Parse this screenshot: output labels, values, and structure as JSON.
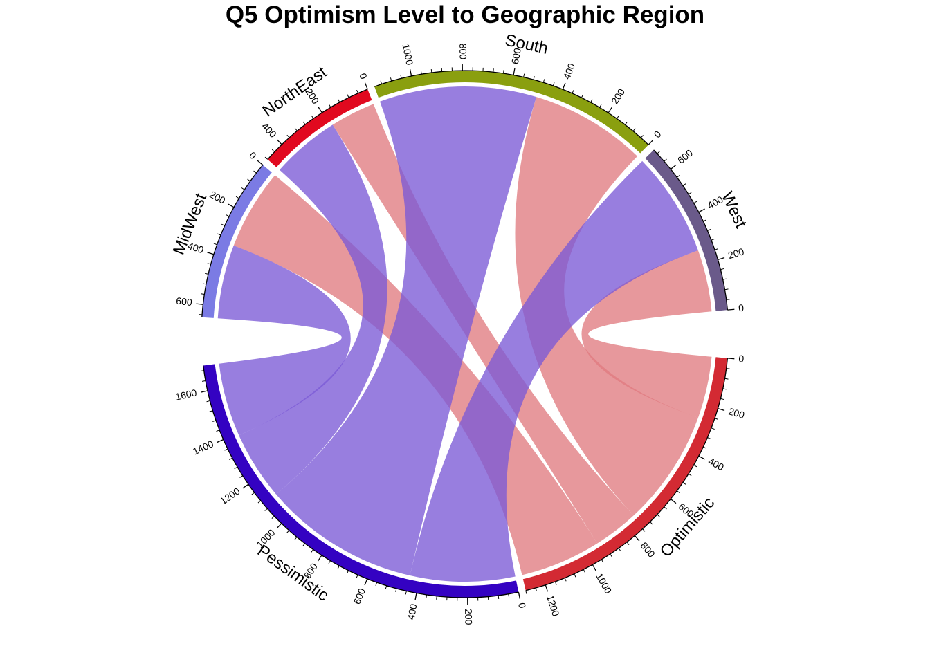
{
  "chart_data": {
    "type": "chord",
    "title": "Q5 Optimism Level to Geographic Region",
    "sectors": [
      {
        "name": "Optimistic",
        "total": 1280,
        "color": "#D32A33",
        "tick_step": 200,
        "minor_step": 40
      },
      {
        "name": "Pessimistic",
        "total": 1700,
        "color": "#3402C2",
        "tick_step": 200,
        "minor_step": 40
      },
      {
        "name": "MidWest",
        "total": 650,
        "color": "#7B7BE4",
        "tick_step": 200,
        "minor_step": 40
      },
      {
        "name": "NorthEast",
        "total": 480,
        "color": "#E1091F",
        "tick_step": 200,
        "minor_step": 40
      },
      {
        "name": "South",
        "total": 1150,
        "color": "#8A9F0F",
        "tick_step": 200,
        "minor_step": 40
      },
      {
        "name": "West",
        "total": 700,
        "color": "#6A5A8A",
        "tick_step": 200,
        "minor_step": 40
      }
    ],
    "links": [
      {
        "from": "Optimistic",
        "to": "West",
        "value": 260,
        "color": "#E07B80"
      },
      {
        "from": "Optimistic",
        "to": "South",
        "value": 490,
        "color": "#E07B80"
      },
      {
        "from": "Optimistic",
        "to": "NorthEast",
        "value": 190,
        "color": "#E07B80"
      },
      {
        "from": "Optimistic",
        "to": "MidWest",
        "value": 340,
        "color": "#E07B80"
      },
      {
        "from": "Pessimistic",
        "to": "West",
        "value": 440,
        "color": "#7B5AD6"
      },
      {
        "from": "Pessimistic",
        "to": "South",
        "value": 660,
        "color": "#7B5AD6"
      },
      {
        "from": "Pessimistic",
        "to": "NorthEast",
        "value": 290,
        "color": "#7B5AD6"
      },
      {
        "from": "Pessimistic",
        "to": "MidWest",
        "value": 310,
        "color": "#7B5AD6"
      }
    ]
  }
}
